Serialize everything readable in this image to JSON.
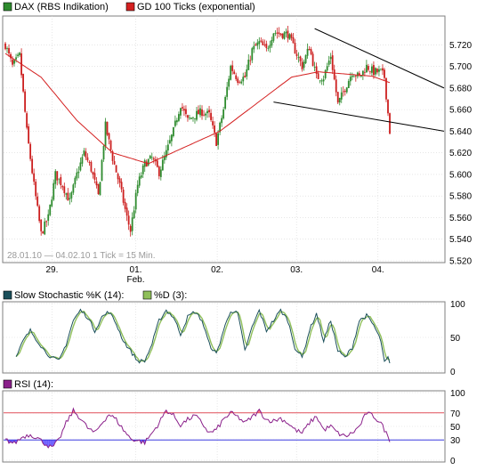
{
  "colors": {
    "price_up": "#2e8b2e",
    "price_down": "#cc1f1f",
    "ema": "#d42020",
    "trendline": "#000000",
    "stoch_k": "#1a4f5a",
    "stoch_d": "#8fbf5a",
    "rsi": "#8a1f8a",
    "rsi_upper_line": "#e0505a",
    "rsi_lower_line": "#3a3ae0",
    "rsi_fill_over": "#ff7080",
    "rsi_fill_under": "#6a5cff",
    "grid": "#d7d7d7",
    "frame": "#7f7f7f"
  },
  "chart_data": [
    {
      "type": "line",
      "panel": "price",
      "legend": [
        {
          "label": "DAX (RBS Indikation)",
          "color": "#2e8b2e"
        },
        {
          "label": "GD 100 Ticks (exponential)",
          "color": "#d42020"
        }
      ],
      "info_text": "28.01.10 — 04.02.10   1 Tick = 15 Min.",
      "x_ticks": [
        {
          "label": "29.",
          "pos": 0.11
        },
        {
          "label": "01.",
          "sub": "Feb.",
          "pos": 0.3
        },
        {
          "label": "02.",
          "pos": 0.485
        },
        {
          "label": "03.",
          "pos": 0.665
        },
        {
          "label": "04.",
          "pos": 0.85
        }
      ],
      "ylim": [
        5520,
        5745
      ],
      "y_ticks": [
        5520,
        5540,
        5560,
        5580,
        5600,
        5620,
        5640,
        5660,
        5680,
        5700,
        5720
      ],
      "price_anchors": [
        [
          0,
          5720
        ],
        [
          4,
          5700
        ],
        [
          8,
          5710
        ],
        [
          12,
          5640
        ],
        [
          16,
          5590
        ],
        [
          20,
          5545
        ],
        [
          24,
          5560
        ],
        [
          28,
          5600
        ],
        [
          32,
          5590
        ],
        [
          36,
          5575
        ],
        [
          40,
          5600
        ],
        [
          44,
          5620
        ],
        [
          48,
          5605
        ],
        [
          52,
          5580
        ],
        [
          56,
          5645
        ],
        [
          60,
          5615
        ],
        [
          64,
          5590
        ],
        [
          68,
          5560
        ],
        [
          70,
          5548
        ],
        [
          74,
          5590
        ],
        [
          78,
          5610
        ],
        [
          82,
          5615
        ],
        [
          86,
          5602
        ],
        [
          90,
          5620
        ],
        [
          94,
          5640
        ],
        [
          98,
          5665
        ],
        [
          102,
          5650
        ],
        [
          106,
          5655
        ],
        [
          110,
          5658
        ],
        [
          114,
          5655
        ],
        [
          118,
          5630
        ],
        [
          122,
          5660
        ],
        [
          126,
          5700
        ],
        [
          130,
          5688
        ],
        [
          134,
          5690
        ],
        [
          138,
          5715
        ],
        [
          142,
          5722
        ],
        [
          146,
          5715
        ],
        [
          150,
          5732
        ],
        [
          154,
          5730
        ],
        [
          158,
          5730
        ],
        [
          162,
          5715
        ],
        [
          166,
          5700
        ],
        [
          170,
          5718
        ],
        [
          174,
          5690
        ],
        [
          178,
          5690
        ],
        [
          182,
          5710
        ],
        [
          186,
          5665
        ],
        [
          190,
          5680
        ],
        [
          194,
          5695
        ],
        [
          198,
          5690
        ],
        [
          202,
          5700
        ],
        [
          206,
          5695
        ],
        [
          210,
          5695
        ],
        [
          212,
          5690
        ],
        [
          215,
          5640
        ]
      ],
      "ema_anchors": [
        [
          0,
          5712
        ],
        [
          20,
          5690
        ],
        [
          40,
          5650
        ],
        [
          60,
          5620
        ],
        [
          80,
          5610
        ],
        [
          100,
          5625
        ],
        [
          120,
          5640
        ],
        [
          140,
          5665
        ],
        [
          160,
          5690
        ],
        [
          175,
          5695
        ],
        [
          190,
          5693
        ],
        [
          205,
          5691
        ],
        [
          215,
          5685
        ]
      ],
      "trendline_upper": [
        [
          173,
          5735
        ],
        [
          256,
          5680
        ]
      ],
      "trendline_lower": [
        [
          150,
          5667
        ],
        [
          256,
          5640
        ]
      ],
      "n_ticks": 216
    },
    {
      "type": "line",
      "panel": "stochastic",
      "legend": [
        {
          "label": "Slow Stochastic %K (14):",
          "color": "#1a4f5a"
        },
        {
          "label": "%D (3):",
          "color": "#8fbf5a"
        }
      ],
      "ylim": [
        0,
        100
      ],
      "y_ticks": [
        0,
        50,
        100
      ],
      "k_anchors": [
        [
          0,
          10
        ],
        [
          6,
          20
        ],
        [
          10,
          45
        ],
        [
          14,
          60
        ],
        [
          18,
          45
        ],
        [
          22,
          30
        ],
        [
          26,
          20
        ],
        [
          30,
          15
        ],
        [
          34,
          40
        ],
        [
          38,
          75
        ],
        [
          42,
          90
        ],
        [
          46,
          80
        ],
        [
          50,
          60
        ],
        [
          54,
          80
        ],
        [
          58,
          88
        ],
        [
          62,
          70
        ],
        [
          66,
          45
        ],
        [
          70,
          30
        ],
        [
          74,
          15
        ],
        [
          78,
          15
        ],
        [
          82,
          40
        ],
        [
          86,
          75
        ],
        [
          90,
          90
        ],
        [
          94,
          80
        ],
        [
          98,
          55
        ],
        [
          102,
          80
        ],
        [
          106,
          88
        ],
        [
          110,
          75
        ],
        [
          114,
          40
        ],
        [
          118,
          25
        ],
        [
          122,
          60
        ],
        [
          126,
          90
        ],
        [
          130,
          85
        ],
        [
          134,
          30
        ],
        [
          138,
          65
        ],
        [
          142,
          90
        ],
        [
          146,
          60
        ],
        [
          150,
          75
        ],
        [
          154,
          90
        ],
        [
          158,
          75
        ],
        [
          162,
          35
        ],
        [
          166,
          20
        ],
        [
          170,
          60
        ],
        [
          174,
          85
        ],
        [
          178,
          45
        ],
        [
          182,
          75
        ],
        [
          186,
          30
        ],
        [
          190,
          20
        ],
        [
          194,
          35
        ],
        [
          198,
          75
        ],
        [
          202,
          82
        ],
        [
          206,
          68
        ],
        [
          210,
          45
        ],
        [
          212,
          12
        ],
        [
          214,
          20
        ],
        [
          215,
          10
        ]
      ]
    },
    {
      "type": "line",
      "panel": "rsi",
      "legend": [
        {
          "label": "RSI (14):",
          "color": "#8a1f8a"
        }
      ],
      "ylim": [
        0,
        100
      ],
      "y_ticks": [
        0,
        30,
        50,
        70,
        100
      ],
      "y_tick_labels": {
        "0": "0",
        "30": "30",
        "50": "50",
        "70": "70",
        "100": "100"
      },
      "levels": {
        "upper": 70,
        "lower": 30
      },
      "rsi_anchors": [
        [
          0,
          30
        ],
        [
          5,
          25
        ],
        [
          10,
          35
        ],
        [
          14,
          38
        ],
        [
          18,
          33
        ],
        [
          22,
          25
        ],
        [
          26,
          18
        ],
        [
          30,
          30
        ],
        [
          34,
          55
        ],
        [
          38,
          73
        ],
        [
          42,
          62
        ],
        [
          46,
          48
        ],
        [
          50,
          40
        ],
        [
          54,
          55
        ],
        [
          58,
          68
        ],
        [
          62,
          60
        ],
        [
          66,
          45
        ],
        [
          70,
          32
        ],
        [
          74,
          29
        ],
        [
          78,
          26
        ],
        [
          82,
          40
        ],
        [
          86,
          55
        ],
        [
          90,
          74
        ],
        [
          94,
          66
        ],
        [
          98,
          52
        ],
        [
          102,
          60
        ],
        [
          106,
          66
        ],
        [
          110,
          55
        ],
        [
          114,
          40
        ],
        [
          118,
          45
        ],
        [
          122,
          60
        ],
        [
          126,
          70
        ],
        [
          130,
          64
        ],
        [
          134,
          55
        ],
        [
          138,
          64
        ],
        [
          142,
          73
        ],
        [
          146,
          60
        ],
        [
          150,
          58
        ],
        [
          154,
          62
        ],
        [
          158,
          55
        ],
        [
          162,
          45
        ],
        [
          166,
          40
        ],
        [
          170,
          55
        ],
        [
          174,
          65
        ],
        [
          178,
          45
        ],
        [
          182,
          50
        ],
        [
          186,
          40
        ],
        [
          190,
          35
        ],
        [
          194,
          40
        ],
        [
          198,
          50
        ],
        [
          202,
          70
        ],
        [
          206,
          65
        ],
        [
          210,
          55
        ],
        [
          212,
          45
        ],
        [
          214,
          35
        ],
        [
          215,
          30
        ]
      ]
    }
  ]
}
